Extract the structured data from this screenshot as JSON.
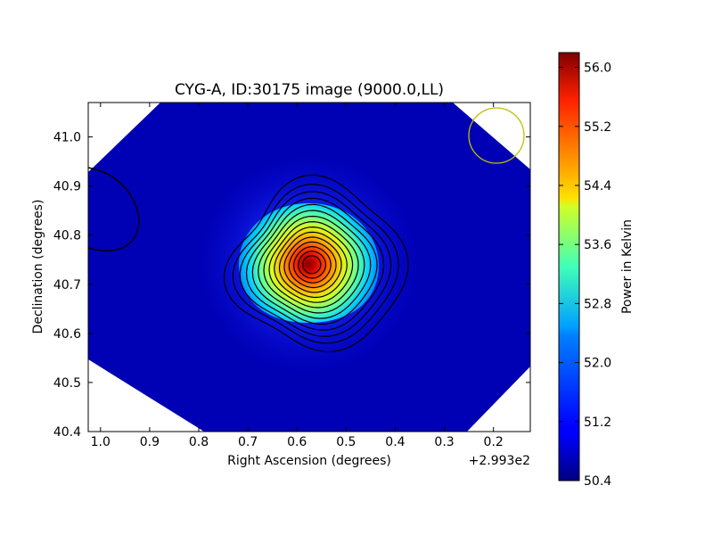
{
  "chart_data": {
    "type": "heatmap",
    "title": "CYG-A, ID:30175 image (9000.0,LL)",
    "xlabel": "Right Ascension (degrees)",
    "ylabel": "Declination (degrees)",
    "x_offset_text": "+2.993e2",
    "x_ticks": [
      "1.0",
      "0.9",
      "0.8",
      "0.7",
      "0.6",
      "0.5",
      "0.4",
      "0.3",
      "0.2"
    ],
    "y_ticks": [
      "40.4",
      "40.5",
      "40.6",
      "40.7",
      "40.8",
      "40.9",
      "41.0"
    ],
    "xlim": [
      1.025,
      0.125
    ],
    "ylim": [
      40.4,
      41.07
    ],
    "colorbar": {
      "label": "Power in Kelvin",
      "ticks": [
        "50.4",
        "51.2",
        "52.0",
        "52.8",
        "53.6",
        "54.4",
        "55.2",
        "56.0"
      ],
      "range": [
        50.4,
        56.2
      ],
      "colormap": "jet"
    },
    "source_peak": {
      "x": 0.57,
      "y": 40.74,
      "value": 56.2
    },
    "background_value": 50.4,
    "beam_circle_color": "#bfbf00",
    "contour_color": "#000000"
  }
}
